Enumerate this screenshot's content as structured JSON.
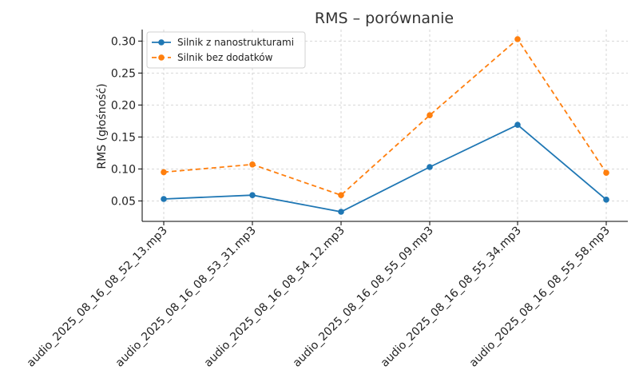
{
  "chart_data": {
    "type": "line",
    "title": "RMS – porównanie",
    "xlabel": "",
    "ylabel": "RMS (głośność)",
    "categories": [
      "audio_2025_08_16_08_52_13.mp3",
      "audio_2025_08_16_08_53_31.mp3",
      "audio_2025_08_16_08_54_12.mp3",
      "audio_2025_08_16_08_55_09.mp3",
      "audio_2025_08_16_08_55_34.mp3",
      "audio_2025_08_16_08_55_58.mp3"
    ],
    "ylim": [
      0.018,
      0.318
    ],
    "yticks": [
      "0.05",
      "0.10",
      "0.15",
      "0.20",
      "0.25",
      "0.30"
    ],
    "grid": true,
    "legend_position": "top-left",
    "series": [
      {
        "name": "Silnik z nanostrukturami",
        "values": [
          0.053,
          0.059,
          0.033,
          0.103,
          0.169,
          0.052
        ],
        "color": "#1f77b4",
        "line_style": "solid",
        "marker": "circle"
      },
      {
        "name": "Silnik bez dodatków",
        "values": [
          0.095,
          0.107,
          0.059,
          0.184,
          0.303,
          0.094
        ],
        "color": "#ff7f0e",
        "line_style": "dashed",
        "marker": "circle"
      }
    ]
  }
}
